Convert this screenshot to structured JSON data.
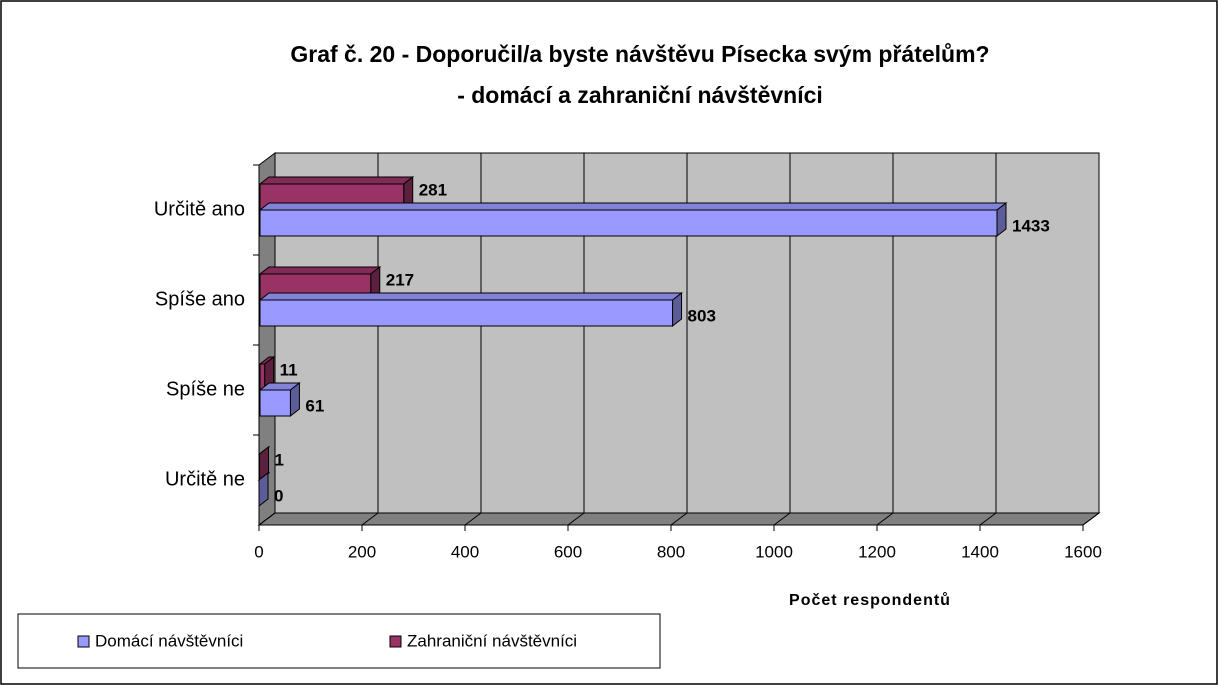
{
  "chart_data": {
    "type": "bar",
    "orientation": "horizontal",
    "title": [
      "Graf č. 20  - Doporučil/a byste návštěvu Písecka svým přátelům?",
      "- domácí a zahraniční návštěvníci"
    ],
    "categories": [
      "Určitě ano",
      "Spíše ano",
      "Spíše ne",
      "Určitě ne"
    ],
    "series": [
      {
        "name": "Domácí návštěvníci",
        "color": "#9999ff",
        "values": [
          1433,
          803,
          61,
          0
        ]
      },
      {
        "name": "Zahraniční návštěvníci",
        "color": "#993366",
        "values": [
          281,
          217,
          11,
          1
        ]
      }
    ],
    "xlabel": "Počet respondentů",
    "xlim": [
      0,
      1600
    ],
    "xticks": [
      0,
      200,
      400,
      600,
      800,
      1000,
      1200,
      1400,
      1600
    ],
    "grid": true,
    "legend": "bottom-left"
  }
}
